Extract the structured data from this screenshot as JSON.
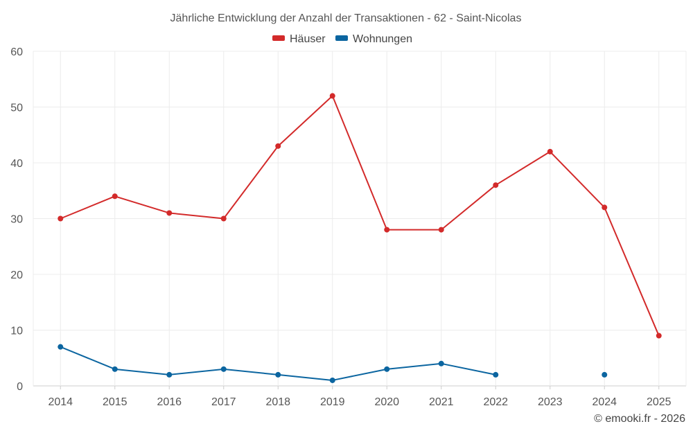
{
  "chart_data": {
    "type": "line",
    "title": "Jährliche Entwicklung der Anzahl der Transaktionen - 62 - Saint-Nicolas",
    "categories": [
      "2014",
      "2015",
      "2016",
      "2017",
      "2018",
      "2019",
      "2020",
      "2021",
      "2022",
      "2023",
      "2024",
      "2025"
    ],
    "series": [
      {
        "name": "Häuser",
        "color": "#d32a2a",
        "values": [
          30,
          34,
          31,
          30,
          43,
          52,
          28,
          28,
          36,
          42,
          32,
          9
        ]
      },
      {
        "name": "Wohnungen",
        "color": "#0b65a0",
        "values": [
          7,
          3,
          2,
          3,
          2,
          1,
          3,
          4,
          2,
          null,
          2,
          null
        ]
      }
    ],
    "ylim": [
      0,
      60
    ],
    "yticks": [
      0,
      10,
      20,
      30,
      40,
      50,
      60
    ],
    "grid": true,
    "legend_position": "top-center",
    "xlabel": "",
    "ylabel": ""
  },
  "credit": "© emooki.fr - 2026"
}
